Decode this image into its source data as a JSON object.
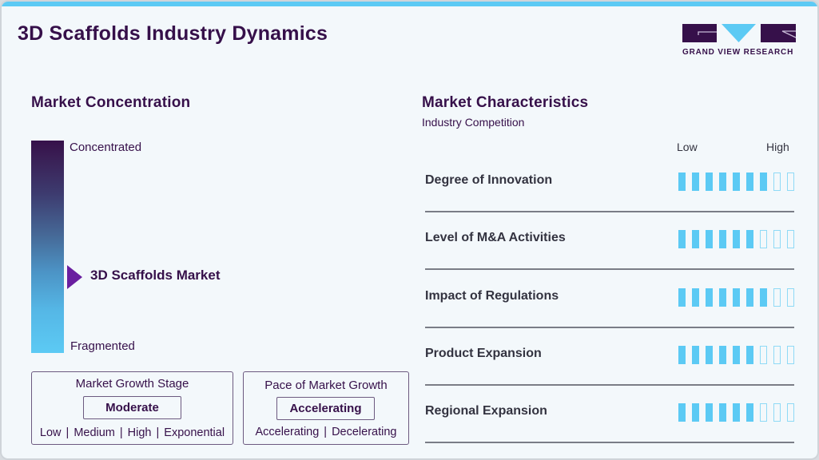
{
  "header": {
    "title": "3D Scaffolds Industry Dynamics",
    "logo_text": "GRAND VIEW RESEARCH"
  },
  "colors": {
    "accent": "#5ccaf4",
    "brand": "#36104a",
    "marker": "#6a1fa0"
  },
  "concentration": {
    "heading": "Market Concentration",
    "top_label": "Concentrated",
    "bottom_label": "Fragmented",
    "market_label": "3D Scaffolds Market",
    "marker_position_pct": 63
  },
  "growth_stage": {
    "title": "Market Growth Stage",
    "value": "Moderate",
    "options": [
      "Low",
      "Medium",
      "High",
      "Exponential"
    ]
  },
  "growth_pace": {
    "title": "Pace of Market Growth",
    "value": "Accelerating",
    "options": [
      "Accelerating",
      "Decelerating"
    ]
  },
  "characteristics": {
    "heading": "Market Characteristics",
    "subheading": "Industry Competition",
    "scale_low": "Low",
    "scale_high": "High",
    "max_score": 9,
    "rows": [
      {
        "label": "Degree of Innovation",
        "score": 7
      },
      {
        "label": "Level of M&A Activities",
        "score": 6
      },
      {
        "label": "Impact of Regulations",
        "score": 7
      },
      {
        "label": "Product Expansion",
        "score": 6
      },
      {
        "label": "Regional Expansion",
        "score": 6
      }
    ]
  }
}
